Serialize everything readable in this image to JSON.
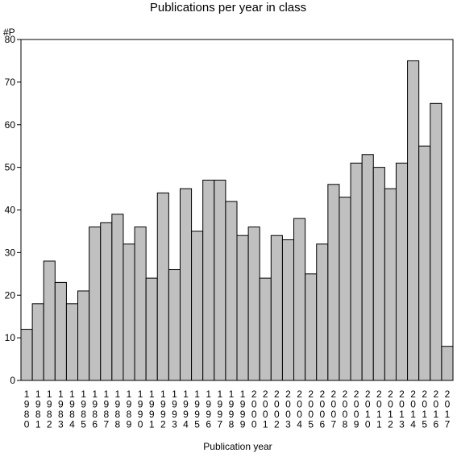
{
  "chart_data": {
    "type": "bar",
    "title": "Publications per year in class",
    "xlabel": "Publication year",
    "ylabel": "#P",
    "ylim": [
      0,
      80
    ],
    "yticks": [
      0,
      10,
      20,
      30,
      40,
      50,
      60,
      70,
      80
    ],
    "grid": false,
    "legend": "none",
    "bar_color": "#c0c0c0",
    "categories": [
      "1980",
      "1981",
      "1982",
      "1983",
      "1984",
      "1985",
      "1986",
      "1987",
      "1988",
      "1989",
      "1990",
      "1991",
      "1992",
      "1993",
      "1994",
      "1995",
      "1996",
      "1997",
      "1998",
      "1999",
      "2000",
      "2001",
      "2002",
      "2003",
      "2004",
      "2005",
      "2006",
      "2007",
      "2008",
      "2009",
      "2010",
      "2011",
      "2012",
      "2013",
      "2014",
      "2015",
      "2016",
      "2017"
    ],
    "values": [
      12,
      18,
      28,
      23,
      18,
      21,
      36,
      37,
      39,
      32,
      36,
      24,
      44,
      26,
      45,
      35,
      47,
      47,
      42,
      34,
      36,
      24,
      34,
      33,
      38,
      25,
      32,
      46,
      43,
      51,
      53,
      50,
      45,
      51,
      75,
      55,
      65,
      8
    ]
  }
}
